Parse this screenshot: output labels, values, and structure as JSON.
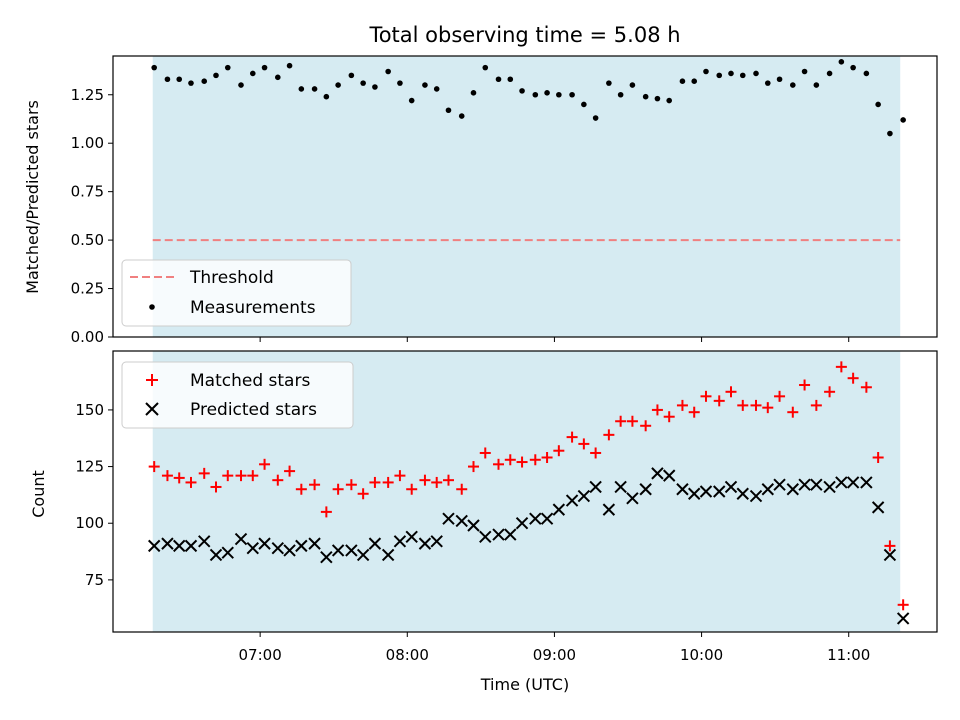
{
  "chart_data": [
    {
      "type": "scatter",
      "title": "Total observing time = 5.08 h",
      "xlabel": "",
      "ylabel": "Matched/Predicted stars",
      "ylim": [
        0.0,
        1.45
      ],
      "yticks": [
        0.0,
        0.25,
        0.5,
        0.75,
        1.0,
        1.25
      ],
      "ytick_labels": [
        "0.00",
        "0.25",
        "0.50",
        "0.75",
        "1.00",
        "1.25"
      ],
      "xlim_hours": [
        6.0,
        11.6
      ],
      "observing_window_hours": [
        6.27,
        11.35
      ],
      "observing_window_color": "#add8e6",
      "legend_position": "lower left",
      "threshold": {
        "name": "Threshold",
        "value": 0.5,
        "color": "#f08080",
        "style": "dashed"
      },
      "series": [
        {
          "name": "Measurements",
          "marker": "dot",
          "color": "#000000",
          "x_hours": [
            6.28,
            6.37,
            6.45,
            6.53,
            6.62,
            6.7,
            6.78,
            6.87,
            6.95,
            7.03,
            7.12,
            7.2,
            7.28,
            7.37,
            7.45,
            7.53,
            7.62,
            7.7,
            7.78,
            7.87,
            7.95,
            8.03,
            8.12,
            8.2,
            8.28,
            8.37,
            8.45,
            8.53,
            8.62,
            8.7,
            8.78,
            8.87,
            8.95,
            9.03,
            9.12,
            9.2,
            9.28,
            9.37,
            9.45,
            9.53,
            9.62,
            9.7,
            9.78,
            9.87,
            9.95,
            10.03,
            10.12,
            10.2,
            10.28,
            10.37,
            10.45,
            10.53,
            10.62,
            10.7,
            10.78,
            10.87,
            10.95,
            11.03,
            11.12,
            11.2,
            11.28,
            11.37
          ],
          "y": [
            1.39,
            1.33,
            1.33,
            1.31,
            1.32,
            1.35,
            1.39,
            1.3,
            1.36,
            1.39,
            1.34,
            1.4,
            1.28,
            1.28,
            1.24,
            1.3,
            1.35,
            1.31,
            1.29,
            1.37,
            1.31,
            1.22,
            1.3,
            1.28,
            1.17,
            1.14,
            1.26,
            1.39,
            1.33,
            1.33,
            1.27,
            1.25,
            1.26,
            1.25,
            1.25,
            1.2,
            1.13,
            1.31,
            1.25,
            1.3,
            1.24,
            1.23,
            1.22,
            1.32,
            1.32,
            1.37,
            1.35,
            1.36,
            1.35,
            1.36,
            1.31,
            1.33,
            1.3,
            1.37,
            1.3,
            1.36,
            1.42,
            1.39,
            1.36,
            1.2,
            1.05,
            1.12
          ]
        }
      ]
    },
    {
      "type": "scatter",
      "title": "",
      "xlabel": "Time (UTC)",
      "ylabel": "Count",
      "ylim": [
        52,
        176
      ],
      "yticks": [
        75,
        100,
        125,
        150
      ],
      "ytick_labels": [
        "75",
        "100",
        "125",
        "150"
      ],
      "xlim_hours": [
        6.0,
        11.6
      ],
      "xticks_hours": [
        7,
        8,
        9,
        10,
        11
      ],
      "xtick_labels": [
        "07:00",
        "08:00",
        "09:00",
        "10:00",
        "11:00"
      ],
      "observing_window_hours": [
        6.27,
        11.35
      ],
      "observing_window_color": "#add8e6",
      "legend_position": "upper left",
      "series": [
        {
          "name": "Matched stars",
          "marker": "plus",
          "color": "#ff0000",
          "x_hours": [
            6.28,
            6.37,
            6.45,
            6.53,
            6.62,
            6.7,
            6.78,
            6.87,
            6.95,
            7.03,
            7.12,
            7.2,
            7.28,
            7.37,
            7.45,
            7.53,
            7.62,
            7.7,
            7.78,
            7.87,
            7.95,
            8.03,
            8.12,
            8.2,
            8.28,
            8.37,
            8.45,
            8.53,
            8.62,
            8.7,
            8.78,
            8.87,
            8.95,
            9.03,
            9.12,
            9.2,
            9.28,
            9.37,
            9.45,
            9.53,
            9.62,
            9.7,
            9.78,
            9.87,
            9.95,
            10.03,
            10.12,
            10.2,
            10.28,
            10.37,
            10.45,
            10.53,
            10.62,
            10.7,
            10.78,
            10.87,
            10.95,
            11.03,
            11.12,
            11.2,
            11.28,
            11.37
          ],
          "y": [
            125,
            121,
            120,
            118,
            122,
            116,
            121,
            121,
            121,
            126,
            119,
            123,
            115,
            117,
            105,
            115,
            117,
            113,
            118,
            118,
            121,
            115,
            119,
            118,
            119,
            115,
            125,
            131,
            126,
            128,
            127,
            128,
            129,
            132,
            138,
            135,
            131,
            139,
            145,
            145,
            143,
            150,
            147,
            152,
            149,
            156,
            154,
            158,
            152,
            152,
            151,
            156,
            149,
            161,
            152,
            158,
            169,
            164,
            160,
            129,
            90,
            64
          ]
        },
        {
          "name": "Predicted stars",
          "marker": "x",
          "color": "#000000",
          "x_hours": [
            6.28,
            6.37,
            6.45,
            6.53,
            6.62,
            6.7,
            6.78,
            6.87,
            6.95,
            7.03,
            7.12,
            7.2,
            7.28,
            7.37,
            7.45,
            7.53,
            7.62,
            7.7,
            7.78,
            7.87,
            7.95,
            8.03,
            8.12,
            8.2,
            8.28,
            8.37,
            8.45,
            8.53,
            8.62,
            8.7,
            8.78,
            8.87,
            8.95,
            9.03,
            9.12,
            9.2,
            9.28,
            9.37,
            9.45,
            9.53,
            9.62,
            9.7,
            9.78,
            9.87,
            9.95,
            10.03,
            10.12,
            10.2,
            10.28,
            10.37,
            10.45,
            10.53,
            10.62,
            10.7,
            10.78,
            10.87,
            10.95,
            11.03,
            11.12,
            11.2,
            11.28,
            11.37
          ],
          "y": [
            90,
            91,
            90,
            90,
            92,
            86,
            87,
            93,
            89,
            91,
            89,
            88,
            90,
            91,
            85,
            88,
            88,
            86,
            91,
            86,
            92,
            94,
            91,
            92,
            102,
            101,
            99,
            94,
            95,
            95,
            100,
            102,
            102,
            106,
            110,
            112,
            116,
            106,
            116,
            111,
            115,
            122,
            121,
            115,
            113,
            114,
            114,
            116,
            113,
            112,
            115,
            117,
            115,
            117,
            117,
            116,
            118,
            118,
            118,
            107,
            86,
            58
          ]
        }
      ]
    }
  ]
}
